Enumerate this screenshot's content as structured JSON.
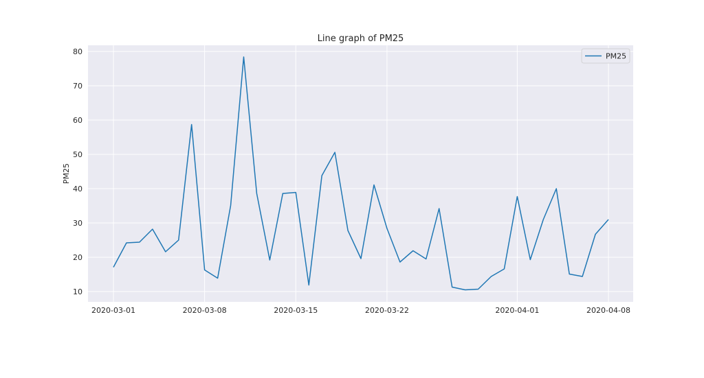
{
  "chart_data": {
    "type": "line",
    "title": "Line graph of PM25",
    "xlabel": "",
    "ylabel": "PM25",
    "x_start": "2020-03-01",
    "x": [
      "2020-03-01",
      "2020-03-02",
      "2020-03-03",
      "2020-03-04",
      "2020-03-05",
      "2020-03-06",
      "2020-03-07",
      "2020-03-08",
      "2020-03-09",
      "2020-03-10",
      "2020-03-11",
      "2020-03-12",
      "2020-03-13",
      "2020-03-14",
      "2020-03-15",
      "2020-03-16",
      "2020-03-17",
      "2020-03-18",
      "2020-03-19",
      "2020-03-20",
      "2020-03-21",
      "2020-03-22",
      "2020-03-23",
      "2020-03-24",
      "2020-03-25",
      "2020-03-26",
      "2020-03-27",
      "2020-03-28",
      "2020-03-29",
      "2020-03-30",
      "2020-03-31",
      "2020-04-01",
      "2020-04-02",
      "2020-04-03",
      "2020-04-04",
      "2020-04-05",
      "2020-04-06",
      "2020-04-07",
      "2020-04-08"
    ],
    "series": [
      {
        "name": "PM25",
        "color": "#1f77b4",
        "values": [
          17.1,
          24.2,
          24.4,
          28.2,
          21.6,
          25.0,
          58.7,
          16.3,
          13.9,
          35.1,
          78.4,
          38.6,
          19.2,
          38.6,
          38.9,
          11.9,
          43.8,
          50.6,
          27.8,
          19.6,
          41.1,
          28.4,
          18.6,
          21.9,
          19.5,
          34.2,
          11.3,
          10.5,
          10.7,
          14.4,
          16.6,
          37.7,
          19.3,
          31.0,
          40.0,
          15.1,
          14.4,
          26.7,
          31.0
        ]
      }
    ],
    "ylim": [
      7.0,
      81.8
    ],
    "yticks": [
      10,
      20,
      30,
      40,
      50,
      60,
      70,
      80
    ],
    "xticks": [
      "2020-03-01",
      "2020-03-08",
      "2020-03-15",
      "2020-03-22",
      "2020-04-01",
      "2020-04-08"
    ],
    "grid": true,
    "legend": {
      "placement": "top-right",
      "entries": [
        "PM25"
      ]
    }
  },
  "colors": {
    "plot_background": "#eaeaf2",
    "grid": "#ffffff",
    "text": "#262626"
  }
}
